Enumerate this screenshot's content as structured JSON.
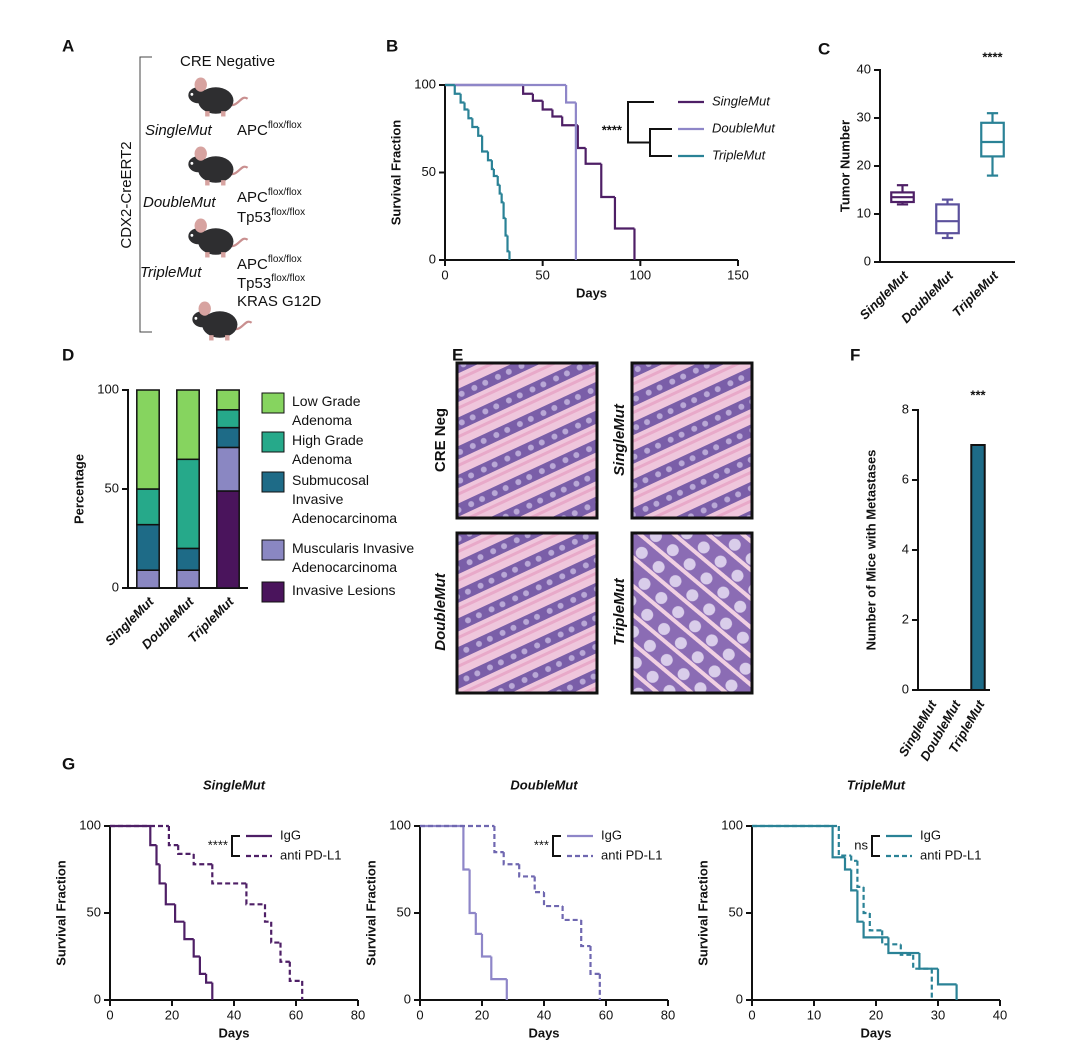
{
  "panel_labels": [
    "A",
    "B",
    "C",
    "D",
    "E",
    "F",
    "G"
  ],
  "panel_a": {
    "axis_label": "CDX2-CreERT2",
    "groups": [
      {
        "name": "CRE Negative"
      },
      {
        "name": "SingleMut",
        "genotype": [
          {
            "gene": "APC",
            "allele": "flox/flox"
          }
        ]
      },
      {
        "name": "DoubleMut",
        "genotype": [
          {
            "gene": "APC",
            "allele": "flox/flox"
          },
          {
            "gene": "Tp53",
            "allele": "flox/flox"
          }
        ]
      },
      {
        "name": "TripleMut",
        "genotype": [
          {
            "gene": "APC",
            "allele": "flox/flox"
          },
          {
            "gene": "Tp53",
            "allele": "flox/flox"
          },
          {
            "gene": "KRAS G12D"
          }
        ]
      }
    ]
  },
  "panel_e": {
    "images": [
      "CRE Neg",
      "SingleMut",
      "DoubleMut",
      "TripleMut"
    ]
  },
  "chart_data": [
    {
      "type": "line",
      "step": true,
      "xlabel": "Days",
      "ylabel": "Survival Fraction",
      "annotation": "****",
      "xlim": [
        0,
        150
      ],
      "xticks": [
        0,
        50,
        100,
        150
      ],
      "ylim": [
        0,
        100
      ],
      "yticks": [
        0,
        50,
        100
      ],
      "series": [
        {
          "name": "SingleMut",
          "color": "#4e1f66",
          "dash": false,
          "x": [
            0,
            40,
            45,
            50,
            55,
            60,
            68,
            72,
            80,
            87,
            97
          ],
          "values": [
            100,
            95,
            91,
            86,
            82,
            77,
            64,
            55,
            36,
            18,
            0
          ]
        },
        {
          "name": "DoubleMut",
          "color": "#8e86c8",
          "dash": false,
          "x": [
            0,
            62,
            67
          ],
          "values": [
            100,
            90,
            0
          ]
        },
        {
          "name": "TripleMut",
          "color": "#2a8296",
          "dash": false,
          "x": [
            0,
            5,
            8,
            10,
            12,
            14,
            17,
            19,
            22,
            24,
            25,
            27,
            28,
            29,
            30,
            31,
            32,
            33
          ],
          "values": [
            100,
            95,
            90,
            86,
            81,
            76,
            71,
            62,
            57,
            52,
            48,
            43,
            38,
            33,
            24,
            14,
            5,
            0
          ]
        }
      ]
    },
    {
      "type": "box",
      "ylabel": "Tumor Number",
      "annotation": "****",
      "ylim": [
        0,
        40
      ],
      "yticks": [
        0,
        10,
        20,
        30,
        40
      ],
      "categories": [
        "SingleMut",
        "DoubleMut",
        "TripleMut"
      ],
      "colors": [
        "#4e1f66",
        "#5b519c",
        "#2a8296"
      ],
      "boxes": [
        {
          "min": 12,
          "q1": 12.5,
          "median": 13.5,
          "q3": 14.5,
          "max": 16
        },
        {
          "min": 5,
          "q1": 6,
          "median": 8.5,
          "q3": 12,
          "max": 13
        },
        {
          "min": 18,
          "q1": 22,
          "median": 25,
          "q3": 29,
          "max": 31
        }
      ]
    },
    {
      "type": "bar",
      "stacked": true,
      "ylabel": "Percentage",
      "ylim": [
        0,
        100
      ],
      "yticks": [
        0,
        50,
        100
      ],
      "categories": [
        "SingleMut",
        "DoubleMut",
        "TripleMut"
      ],
      "series": [
        {
          "name": "Invasive Lesions",
          "color": "#4a145c",
          "values": [
            0,
            0,
            49
          ]
        },
        {
          "name": "Muscularis Invasive\nAdenocarcinoma",
          "color": "#8a87c2",
          "values": [
            9,
            9,
            22
          ]
        },
        {
          "name": "Submucosal\nInvasive\nAdenocarcinoma",
          "color": "#1e6b87",
          "values": [
            23,
            11,
            10
          ]
        },
        {
          "name": "High Grade\nAdenoma",
          "color": "#26a98a",
          "values": [
            18,
            45,
            9
          ]
        },
        {
          "name": "Low Grade\nAdenoma",
          "color": "#86d45f",
          "values": [
            50,
            35,
            10
          ]
        }
      ]
    },
    {
      "type": "bar",
      "ylabel": "Number of Mice with Metastases",
      "annotation": "***",
      "ylim": [
        0,
        8
      ],
      "yticks": [
        0,
        2,
        4,
        6,
        8
      ],
      "categories": [
        "SingleMut",
        "DoubleMut",
        "TripleMut"
      ],
      "values": [
        0,
        0,
        7
      ],
      "color": "#1e6b87"
    },
    {
      "type": "line",
      "step": true,
      "title": "SingleMut",
      "xlabel": "Days",
      "ylabel": "Survival Fraction",
      "annotation": "****",
      "xlim": [
        0,
        80
      ],
      "xticks": [
        0,
        20,
        40,
        60,
        80
      ],
      "ylim": [
        0,
        100
      ],
      "yticks": [
        0,
        50,
        100
      ],
      "series": [
        {
          "name": "IgG",
          "color": "#4e1f66",
          "dash": false,
          "x": [
            0,
            13,
            15,
            16,
            18,
            21,
            24,
            27,
            29,
            31,
            33
          ],
          "values": [
            100,
            89,
            78,
            67,
            55,
            45,
            35,
            25,
            15,
            10,
            0
          ]
        },
        {
          "name": "anti PD-L1",
          "color": "#4e1f66",
          "dash": true,
          "x": [
            0,
            19,
            22,
            27,
            33,
            44,
            50,
            52,
            55,
            58,
            62
          ],
          "values": [
            100,
            89,
            84,
            78,
            67,
            55,
            45,
            33,
            22,
            11,
            0
          ]
        }
      ]
    },
    {
      "type": "line",
      "step": true,
      "title": "DoubleMut",
      "xlabel": "Days",
      "ylabel": "Survival Fraction",
      "annotation": "***",
      "xlim": [
        0,
        80
      ],
      "xticks": [
        0,
        20,
        40,
        60,
        80
      ],
      "ylim": [
        0,
        100
      ],
      "yticks": [
        0,
        50,
        100
      ],
      "series": [
        {
          "name": "IgG",
          "color": "#8e86c8",
          "dash": false,
          "x": [
            0,
            14,
            16,
            18,
            20,
            23,
            28
          ],
          "values": [
            100,
            75,
            50,
            38,
            25,
            12,
            0
          ]
        },
        {
          "name": "anti PD-L1",
          "color": "#6f67b0",
          "dash": true,
          "x": [
            0,
            24,
            27,
            32,
            37,
            40,
            46,
            52,
            55,
            58
          ],
          "values": [
            100,
            85,
            78,
            71,
            62,
            54,
            46,
            31,
            15,
            0
          ]
        }
      ]
    },
    {
      "type": "line",
      "step": true,
      "title": "TripleMut",
      "xlabel": "Days",
      "ylabel": "Survival Fraction",
      "annotation": "ns",
      "xlim": [
        0,
        40
      ],
      "xticks": [
        0,
        10,
        20,
        30,
        40
      ],
      "ylim": [
        0,
        100
      ],
      "yticks": [
        0,
        50,
        100
      ],
      "series": [
        {
          "name": "IgG",
          "color": "#2a8296",
          "dash": false,
          "x": [
            0,
            13,
            15,
            16,
            17,
            18,
            20,
            22,
            25,
            27,
            30,
            33
          ],
          "values": [
            100,
            82,
            75,
            63,
            45,
            36,
            36,
            27,
            27,
            18,
            9,
            0
          ]
        },
        {
          "name": "anti PD-L1",
          "color": "#2a8296",
          "dash": true,
          "x": [
            0,
            14,
            16,
            17,
            18,
            19,
            21,
            24,
            26,
            29
          ],
          "values": [
            100,
            83,
            80,
            65,
            50,
            40,
            32,
            26,
            18,
            0
          ]
        }
      ]
    }
  ]
}
